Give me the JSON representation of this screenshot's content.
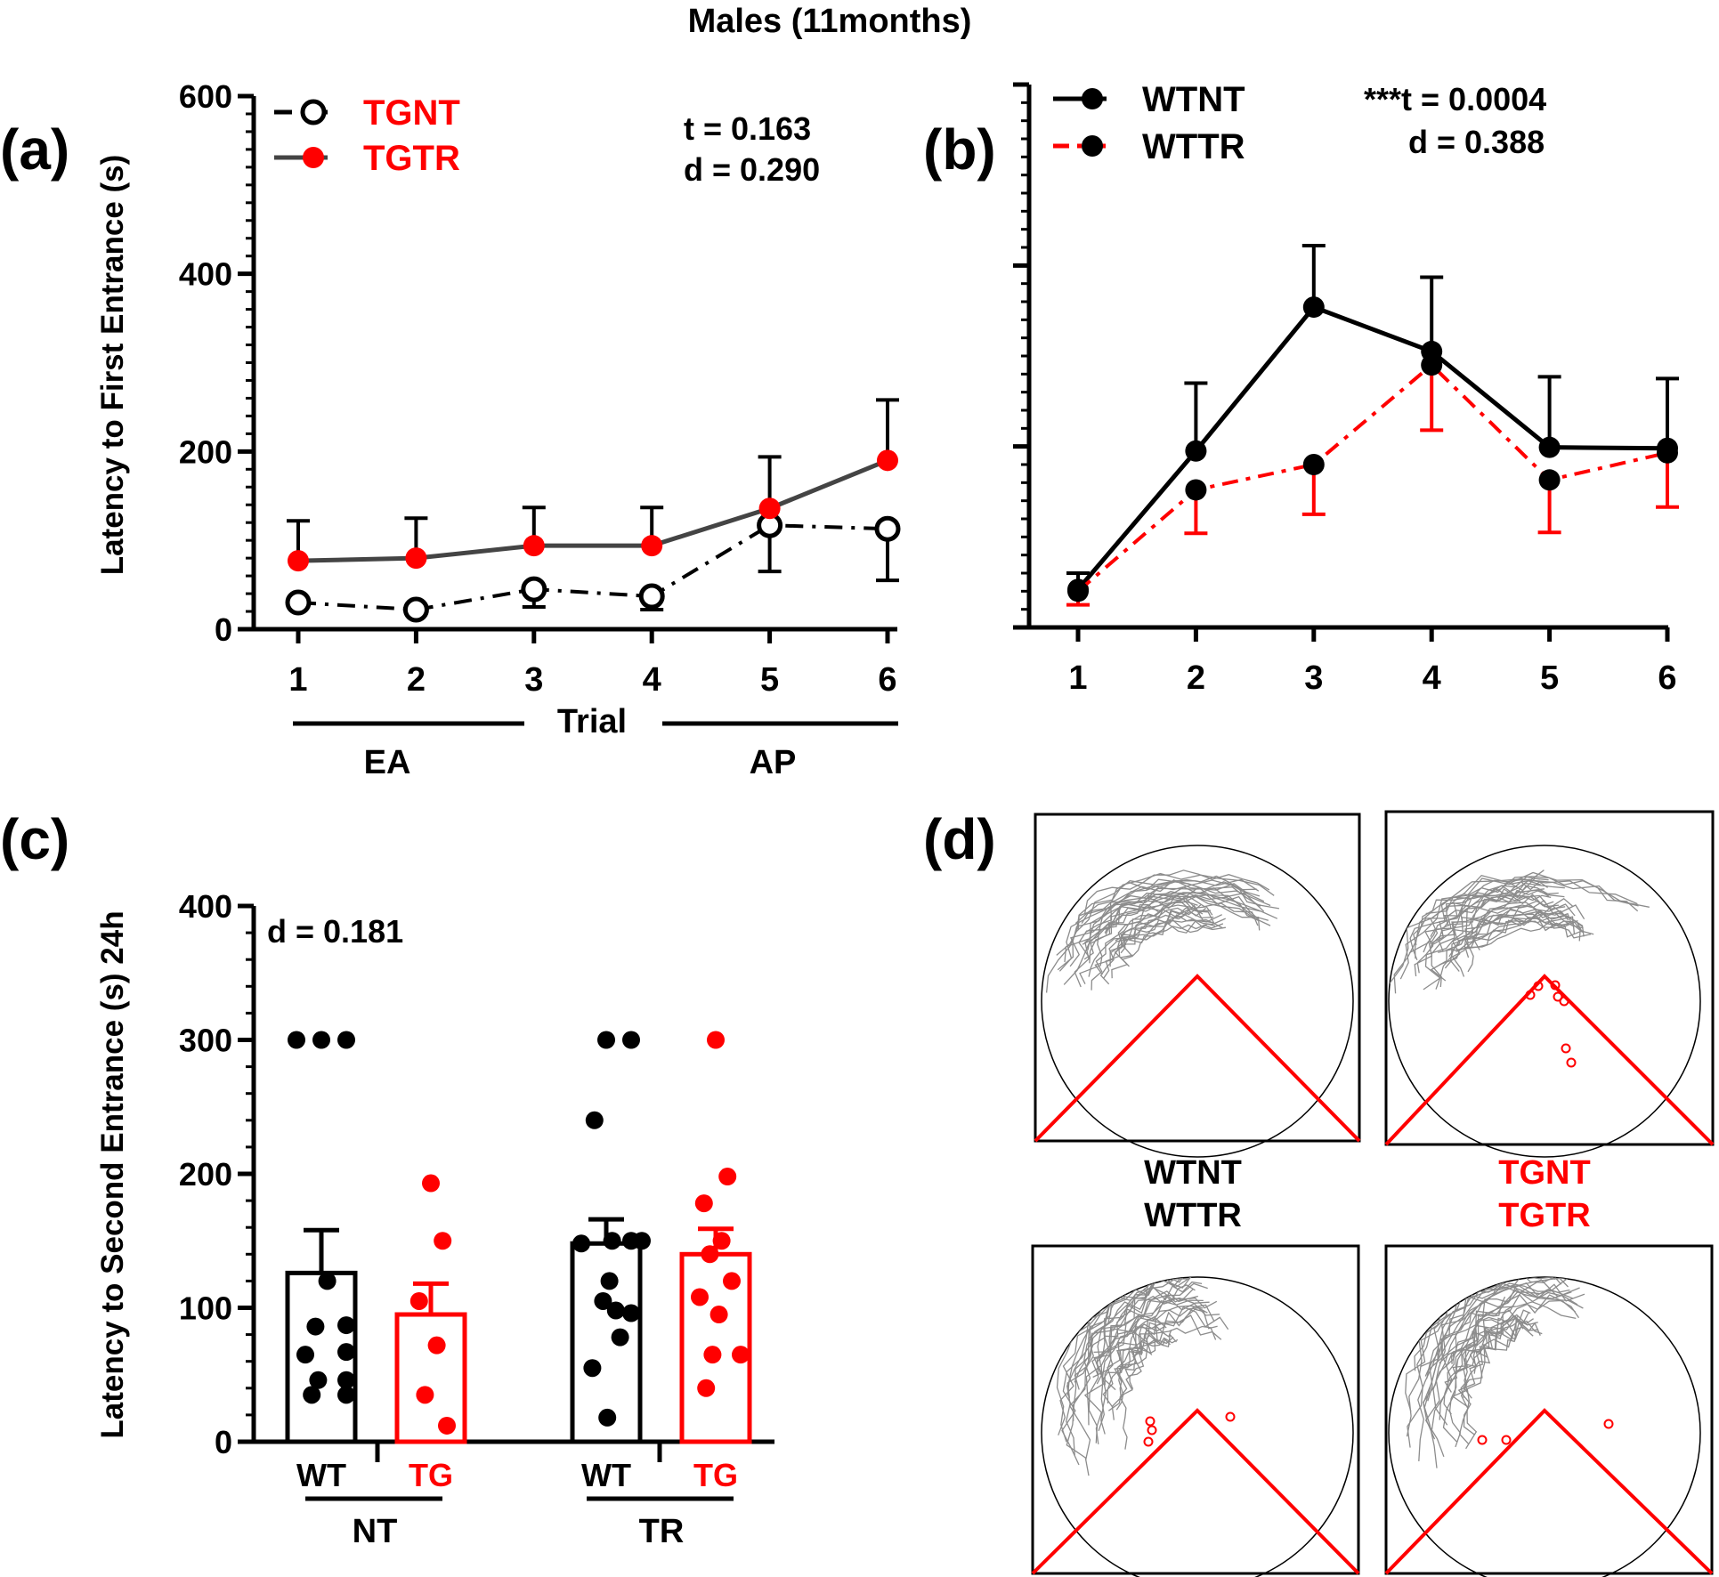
{
  "figure_title": "Males (11months)",
  "colors": {
    "black": "#000000",
    "red": "#ff0000",
    "gray": "#444444",
    "track": "#8c8c8c"
  },
  "chart_data": [
    {
      "id": "a",
      "panel_label": "(a)",
      "type": "line",
      "ylabel": "Latency to First Entrance (s)",
      "xlabel": "Trial",
      "categories": [
        "1",
        "2",
        "3",
        "4",
        "5",
        "6"
      ],
      "ylim": [
        0,
        600
      ],
      "yticks": [
        "0",
        "200",
        "400",
        "600"
      ],
      "series": [
        {
          "name": "TGNT",
          "color": "#000000",
          "values": [
            30,
            22,
            45,
            37,
            117,
            113
          ],
          "errors": [
            0,
            0,
            20,
            15,
            52,
            58
          ]
        },
        {
          "name": "TGTR",
          "color": "#ff0000",
          "values": [
            77,
            80,
            94,
            94,
            136,
            190
          ],
          "errors": [
            45,
            45,
            43,
            43,
            58,
            68
          ]
        }
      ],
      "phases": [
        {
          "label": "EA",
          "from": "1",
          "to": "3"
        },
        {
          "label": "AP",
          "from": "4",
          "to": "6"
        }
      ],
      "stats": [
        "t = 0.163",
        "d = 0.290"
      ]
    },
    {
      "id": "b",
      "panel_label": "(b)",
      "type": "line",
      "categories": [
        "1",
        "2",
        "3",
        "4",
        "5",
        "6"
      ],
      "ylim": [
        0,
        600
      ],
      "series": [
        {
          "name": "WTNT",
          "color": "#000000",
          "values": [
            42,
            195,
            354,
            305,
            199,
            198
          ],
          "errors": [
            18,
            75,
            68,
            82,
            78,
            77
          ]
        },
        {
          "name": "WTTR",
          "color": "#ff0000",
          "values": [
            40,
            152,
            180,
            290,
            163,
            193
          ],
          "errors": [
            15,
            48,
            55,
            72,
            58,
            60
          ]
        }
      ],
      "stats": [
        "***t = 0.0004",
        "d = 0.388"
      ]
    },
    {
      "id": "c",
      "panel_label": "(c)",
      "type": "bar",
      "ylabel": "Latency to Second Entrance (s) 24h",
      "ylim": [
        0,
        400
      ],
      "yticks": [
        "0",
        "100",
        "200",
        "300",
        "400"
      ],
      "bars": [
        {
          "label": "WT",
          "group": "NT",
          "color": "#000000",
          "mean": 126,
          "sem": 32,
          "points": [
            300,
            300,
            300,
            120,
            86,
            87,
            65,
            67,
            46,
            46,
            35,
            35
          ]
        },
        {
          "label": "TG",
          "group": "NT",
          "color": "#ff0000",
          "mean": 95,
          "sem": 23,
          "points": [
            193,
            150,
            105,
            72,
            35,
            12
          ]
        },
        {
          "label": "WT",
          "group": "TR",
          "color": "#000000",
          "mean": 148,
          "sem": 18,
          "points": [
            300,
            300,
            240,
            150,
            150,
            148,
            150,
            120,
            105,
            98,
            96,
            78,
            55,
            18
          ]
        },
        {
          "label": "TG",
          "group": "TR",
          "color": "#ff0000",
          "mean": 140,
          "sem": 19,
          "points": [
            300,
            198,
            178,
            150,
            140,
            120,
            108,
            95,
            65,
            65,
            40
          ]
        }
      ],
      "groups": [
        "NT",
        "TR"
      ],
      "stats": [
        "d = 0.181"
      ]
    }
  ],
  "panel_d": {
    "panel_label": "(d)",
    "label_left": [
      "WTNT",
      "WTTR"
    ],
    "label_right": [
      "TGNT",
      "TGTR"
    ]
  }
}
